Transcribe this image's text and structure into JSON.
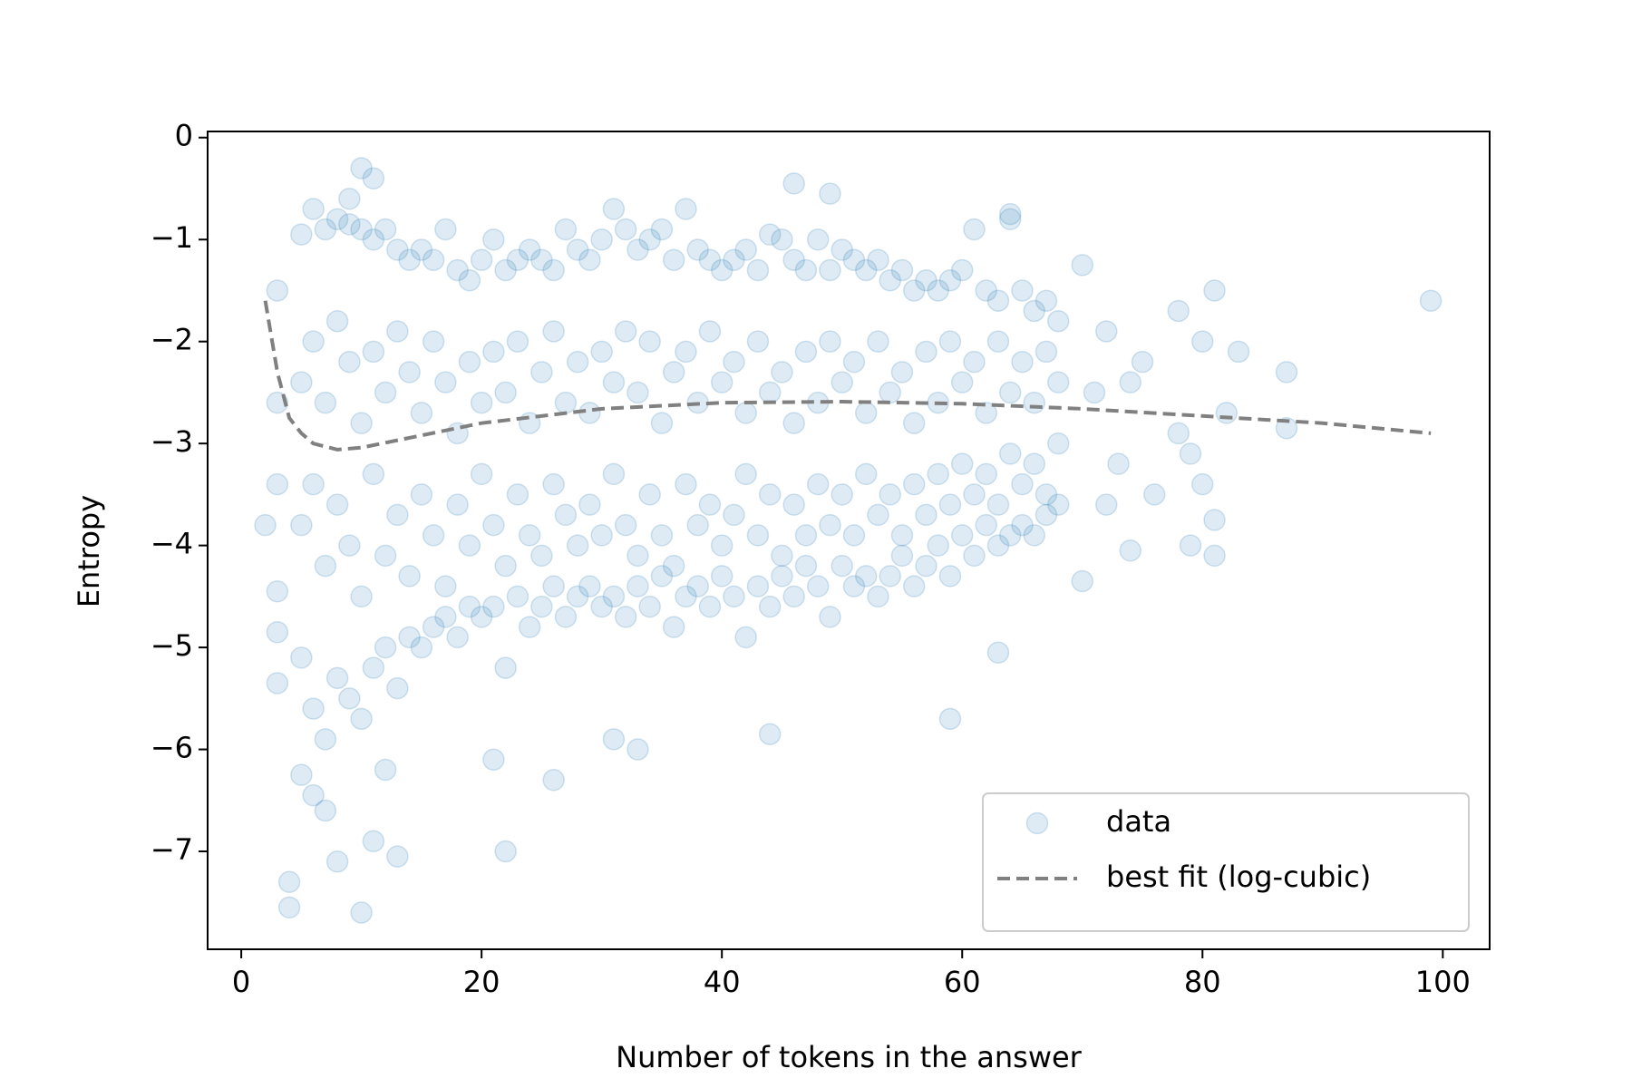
{
  "chart_data": {
    "type": "scatter",
    "xlabel": "Number of tokens in the answer",
    "ylabel": "Entropy",
    "xlim": [
      -2.8,
      103.9
    ],
    "ylim": [
      -7.96,
      0.06
    ],
    "xticks": [
      0,
      20,
      40,
      60,
      80,
      100
    ],
    "yticks": [
      0,
      {
        "value": -1,
        "label": "−1"
      },
      {
        "value": -2,
        "label": "−2"
      },
      {
        "value": -3,
        "label": "−3"
      },
      {
        "value": -4,
        "label": "−4"
      },
      {
        "value": -5,
        "label": "−5"
      },
      {
        "value": -6,
        "label": "−6"
      },
      {
        "value": -7,
        "label": "−7"
      }
    ],
    "legend": "lower right",
    "series": [
      {
        "name": "data",
        "type": "scatter",
        "color": "#1f77b4",
        "alpha": 0.15,
        "x": [
          5,
          5,
          5,
          5,
          6,
          6,
          6,
          6,
          7,
          7,
          7,
          7,
          8,
          8,
          8,
          8,
          9,
          9,
          9,
          9,
          10,
          10,
          10,
          10,
          11,
          11,
          11,
          11,
          12,
          12,
          12,
          12,
          13,
          13,
          13,
          13,
          14,
          14,
          14,
          14,
          15,
          15,
          15,
          15,
          16,
          16,
          16,
          16,
          17,
          17,
          17,
          17,
          18,
          18,
          18,
          18,
          19,
          19,
          19,
          19,
          20,
          20,
          20,
          20,
          21,
          21,
          21,
          21,
          22,
          22,
          22,
          22,
          23,
          23,
          23,
          23,
          24,
          24,
          24,
          24,
          25,
          25,
          25,
          25,
          26,
          26,
          26,
          26,
          27,
          27,
          27,
          27,
          28,
          28,
          28,
          28,
          29,
          29,
          29,
          29,
          30,
          30,
          30,
          30,
          31,
          31,
          31,
          31,
          32,
          32,
          32,
          32,
          33,
          33,
          33,
          33,
          34,
          34,
          34,
          34,
          35,
          35,
          35,
          35,
          36,
          36,
          36,
          36,
          37,
          37,
          37,
          37,
          38,
          38,
          38,
          38,
          39,
          39,
          39,
          39,
          40,
          40,
          40,
          40,
          41,
          41,
          41,
          41,
          42,
          42,
          42,
          42,
          43,
          43,
          43,
          43,
          44,
          44,
          44,
          44,
          45,
          45,
          45,
          45,
          46,
          46,
          46,
          46,
          47,
          47,
          47,
          47,
          48,
          48,
          48,
          48,
          49,
          49,
          49,
          49,
          50,
          50,
          50,
          50,
          51,
          51,
          51,
          51,
          52,
          52,
          52,
          52,
          53,
          53,
          53,
          53,
          54,
          54,
          54,
          54,
          55,
          55,
          55,
          55,
          56,
          56,
          56,
          56,
          57,
          57,
          57,
          57,
          58,
          58,
          58,
          58,
          59,
          59,
          59,
          59,
          60,
          60,
          60,
          60,
          61,
          61,
          61,
          61,
          62,
          62,
          62,
          62,
          63,
          63,
          63,
          63,
          64,
          64,
          64,
          64,
          65,
          65,
          65,
          65,
          66,
          66,
          66,
          66,
          67,
          67,
          67,
          67,
          68,
          68,
          68,
          68,
          10,
          11,
          9,
          3,
          3,
          2,
          3,
          3,
          3,
          3,
          4,
          4,
          5,
          6,
          7,
          8,
          10,
          11,
          13,
          22,
          12,
          21,
          26,
          31,
          33,
          44,
          59,
          63,
          46,
          49,
          64,
          70,
          71,
          72,
          73,
          74,
          75,
          76,
          78,
          78,
          79,
          79,
          80,
          80,
          81,
          81,
          81,
          82,
          83,
          87,
          87,
          99,
          70,
          72,
          74
        ],
        "values": [
          -0.95,
          -2.4,
          -3.8,
          -5.1,
          -0.7,
          -2.0,
          -3.4,
          -5.6,
          -0.9,
          -2.6,
          -4.2,
          -5.9,
          -0.8,
          -1.8,
          -3.6,
          -5.3,
          -0.85,
          -2.2,
          -4.0,
          -5.5,
          -0.9,
          -2.8,
          -4.5,
          -5.7,
          -1.0,
          -2.1,
          -3.3,
          -5.2,
          -0.9,
          -2.5,
          -4.1,
          -5.0,
          -1.1,
          -1.9,
          -3.7,
          -5.4,
          -1.2,
          -2.3,
          -4.3,
          -4.9,
          -1.1,
          -2.7,
          -3.5,
          -5.0,
          -1.2,
          -2.0,
          -3.9,
          -4.8,
          -0.9,
          -2.4,
          -4.4,
          -4.7,
          -1.3,
          -2.9,
          -3.6,
          -4.9,
          -1.4,
          -2.2,
          -4.0,
          -4.6,
          -1.2,
          -2.6,
          -3.3,
          -4.7,
          -1.0,
          -2.1,
          -3.8,
          -4.6,
          -1.3,
          -2.5,
          -4.2,
          -5.2,
          -1.2,
          -2.0,
          -3.5,
          -4.5,
          -1.1,
          -2.8,
          -3.9,
          -4.8,
          -1.2,
          -2.3,
          -4.1,
          -4.6,
          -1.3,
          -1.9,
          -3.4,
          -4.4,
          -0.9,
          -2.6,
          -3.7,
          -4.7,
          -1.1,
          -2.2,
          -4.0,
          -4.5,
          -1.2,
          -2.7,
          -3.6,
          -4.4,
          -1.0,
          -2.1,
          -3.9,
          -4.6,
          -0.7,
          -2.4,
          -3.3,
          -4.5,
          -0.9,
          -1.9,
          -3.8,
          -4.7,
          -1.1,
          -2.5,
          -4.1,
          -4.4,
          -1.0,
          -2.0,
          -3.5,
          -4.6,
          -0.9,
          -2.8,
          -3.9,
          -4.3,
          -1.2,
          -2.3,
          -4.2,
          -4.8,
          -0.7,
          -2.1,
          -3.4,
          -4.5,
          -1.1,
          -2.6,
          -3.8,
          -4.4,
          -1.2,
          -1.9,
          -3.6,
          -4.6,
          -1.3,
          -2.4,
          -4.0,
          -4.3,
          -1.2,
          -2.2,
          -3.7,
          -4.5,
          -1.1,
          -2.7,
          -3.3,
          -4.9,
          -1.3,
          -2.0,
          -3.9,
          -4.4,
          -0.95,
          -2.5,
          -3.5,
          -4.6,
          -1.0,
          -2.3,
          -4.1,
          -4.3,
          -1.2,
          -2.8,
          -3.6,
          -4.5,
          -1.3,
          -2.1,
          -3.9,
          -4.2,
          -1.0,
          -2.6,
          -3.4,
          -4.4,
          -1.3,
          -2.0,
          -3.8,
          -4.7,
          -1.1,
          -2.4,
          -3.5,
          -4.2,
          -1.2,
          -2.2,
          -3.9,
          -4.4,
          -1.3,
          -2.7,
          -3.3,
          -4.3,
          -1.2,
          -2.0,
          -3.7,
          -4.5,
          -1.4,
          -2.5,
          -3.5,
          -4.3,
          -1.3,
          -2.3,
          -3.9,
          -4.1,
          -1.5,
          -2.8,
          -3.4,
          -4.4,
          -1.4,
          -2.1,
          -3.7,
          -4.2,
          -1.5,
          -2.6,
          -3.3,
          -4.0,
          -1.4,
          -2.0,
          -3.6,
          -4.3,
          -1.3,
          -2.4,
          -3.2,
          -3.9,
          -0.9,
          -2.2,
          -3.5,
          -4.1,
          -1.5,
          -2.7,
          -3.3,
          -3.8,
          -1.6,
          -2.0,
          -3.6,
          -4.0,
          -0.8,
          -2.5,
          -3.1,
          -3.9,
          -1.5,
          -2.2,
          -3.4,
          -3.8,
          -1.7,
          -2.6,
          -3.2,
          -3.9,
          -1.6,
          -2.1,
          -3.5,
          -3.7,
          -1.8,
          -2.4,
          -3.0,
          -3.6,
          -0.3,
          -0.4,
          -0.6,
          -1.5,
          -2.6,
          -3.8,
          -3.4,
          -4.45,
          -4.85,
          -5.35,
          -7.3,
          -7.55,
          -6.25,
          -6.45,
          -6.6,
          -7.1,
          -7.6,
          -6.9,
          -7.05,
          -7.0,
          -6.2,
          -6.1,
          -6.3,
          -5.9,
          -6.0,
          -5.85,
          -5.7,
          -5.05,
          -0.45,
          -0.55,
          -0.75,
          -1.25,
          -2.5,
          -1.9,
          -3.2,
          -4.05,
          -2.2,
          -3.5,
          -1.7,
          -2.9,
          -3.1,
          -4.0,
          -2.0,
          -3.4,
          -1.5,
          -4.1,
          -3.75,
          -2.7,
          -2.1,
          -2.3,
          -2.85,
          -1.6,
          -4.35,
          -3.6,
          -2.4
        ]
      },
      {
        "name": "best fit (log-cubic)",
        "type": "line",
        "color": "#808080",
        "dashed": true,
        "x": [
          2,
          3,
          4,
          5,
          6,
          8,
          10,
          15,
          20,
          30,
          40,
          50,
          60,
          70,
          80,
          90,
          99
        ],
        "values": [
          -1.6,
          -2.3,
          -2.75,
          -2.9,
          -3.0,
          -3.06,
          -3.04,
          -2.92,
          -2.8,
          -2.66,
          -2.6,
          -2.59,
          -2.61,
          -2.66,
          -2.73,
          -2.8,
          -2.9
        ]
      }
    ]
  }
}
